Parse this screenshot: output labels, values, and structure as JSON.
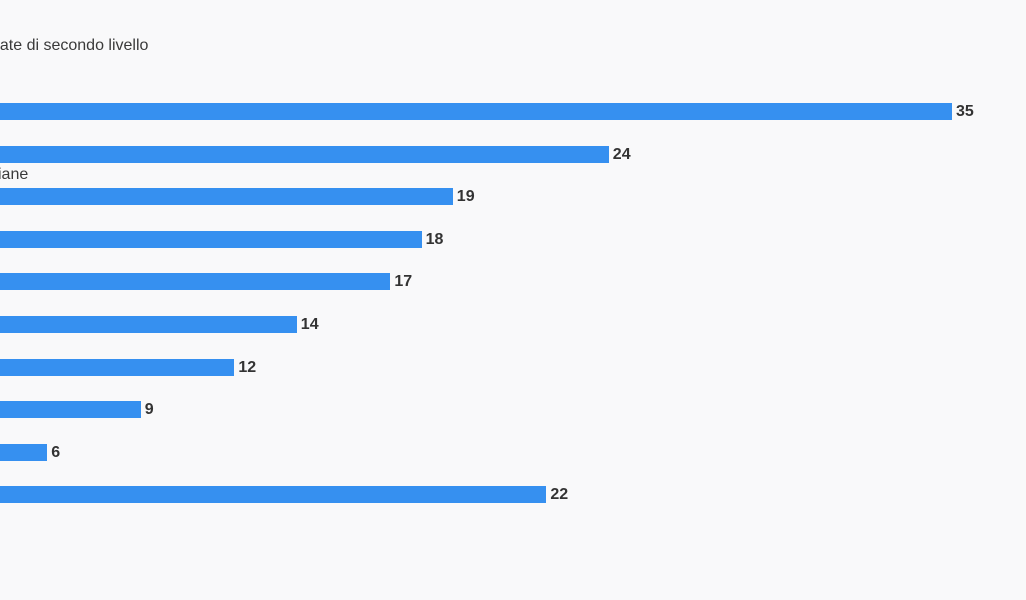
{
  "chart_data": {
    "type": "bar",
    "orientation": "horizontal",
    "subtitle": "pate di secondo livello",
    "categories": [
      "",
      "",
      "iane",
      "",
      "",
      "",
      "",
      "",
      "",
      ""
    ],
    "values": [
      35,
      24,
      19,
      18,
      17,
      14,
      12,
      9,
      6,
      22
    ],
    "bar_color": "#3690f0",
    "xlim": [
      0,
      35
    ],
    "grid": false,
    "legend": "none"
  }
}
